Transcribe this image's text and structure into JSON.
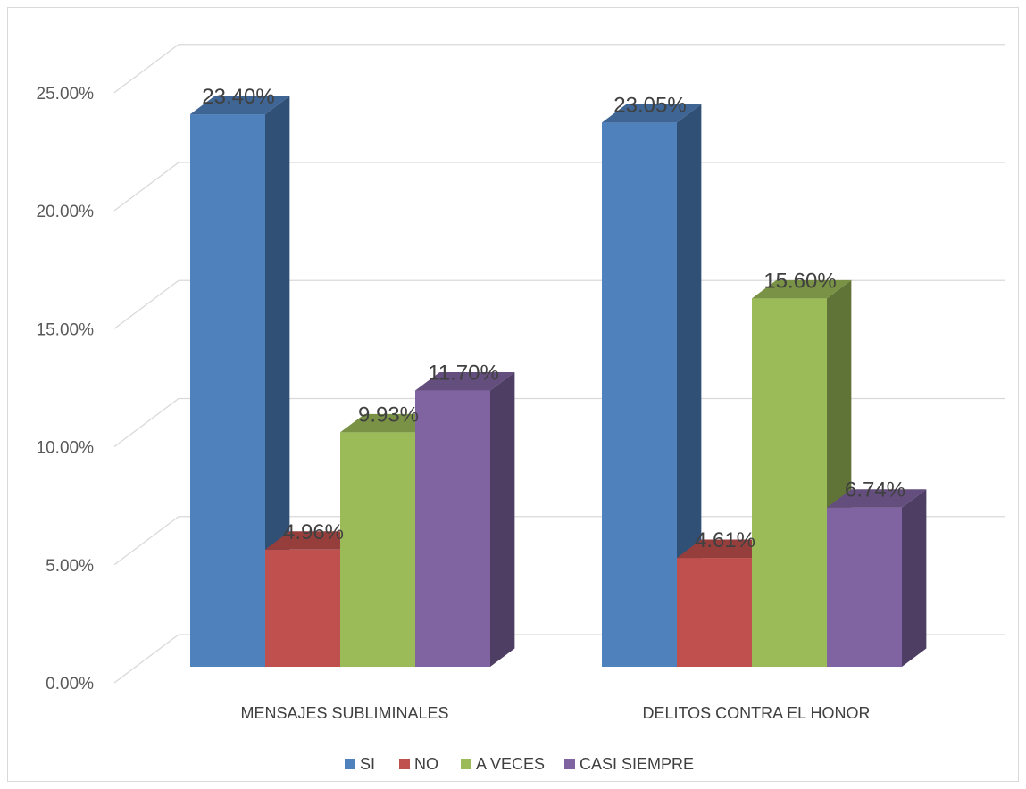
{
  "chart_data": {
    "type": "bar",
    "style": "3d-clustered-column",
    "categories": [
      "MENSAJES SUBLIMINALES",
      "DELITOS CONTRA EL HONOR"
    ],
    "series": [
      {
        "name": "SI",
        "color": "#4f81bd",
        "values": [
          23.4,
          23.05
        ],
        "labels": [
          "23.40%",
          "23.05%"
        ]
      },
      {
        "name": "NO",
        "color": "#c0504d",
        "values": [
          4.96,
          4.61
        ],
        "labels": [
          "4.96%",
          "4.61%"
        ]
      },
      {
        "name": "A VECES",
        "color": "#9bbb59",
        "values": [
          9.93,
          15.6
        ],
        "labels": [
          "9.93%",
          "15.60%"
        ]
      },
      {
        "name": "CASI SIEMPRE",
        "color": "#8064a2",
        "values": [
          11.7,
          6.74
        ],
        "labels": [
          "11.70%",
          "6.74%"
        ]
      }
    ],
    "y_ticks": [
      "0.00%",
      "5.00%",
      "10.00%",
      "15.00%",
      "20.00%",
      "25.00%"
    ],
    "ylim": [
      0,
      25
    ],
    "grid": true,
    "legend": "bottom"
  }
}
